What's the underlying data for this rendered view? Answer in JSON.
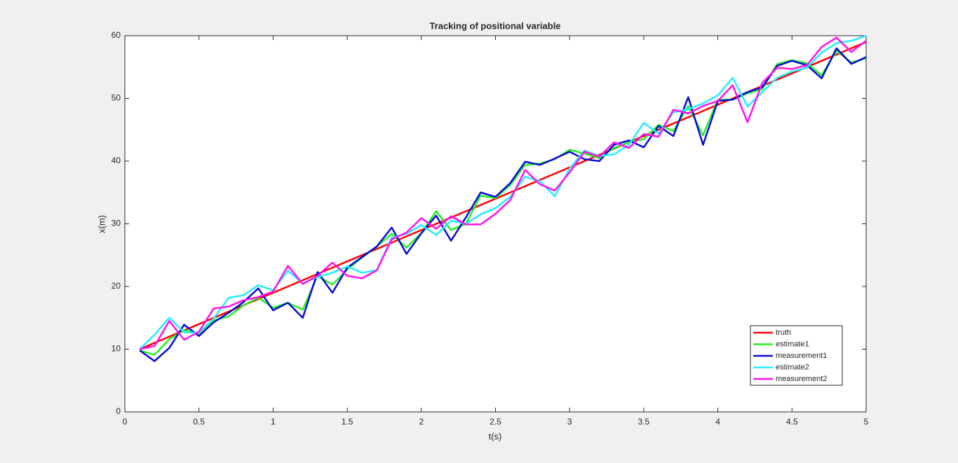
{
  "chart_data": {
    "type": "line",
    "title": "Tracking of positional variable",
    "xlabel": "t(s)",
    "ylabel": "x(m)",
    "x": [
      0.1,
      0.2,
      0.3,
      0.4,
      0.5,
      0.6,
      0.7,
      0.8,
      0.9,
      1.0,
      1.1,
      1.2,
      1.3,
      1.4,
      1.5,
      1.6,
      1.7,
      1.8,
      1.9,
      2.0,
      2.1,
      2.2,
      2.3,
      2.4,
      2.5,
      2.6,
      2.7,
      2.8,
      2.9,
      3.0,
      3.1,
      3.2,
      3.3,
      3.4,
      3.5,
      3.6,
      3.7,
      3.8,
      3.9,
      4.0,
      4.1,
      4.2,
      4.3,
      4.4,
      4.5,
      4.6,
      4.7,
      4.8,
      4.9,
      5.0
    ],
    "series": [
      {
        "name": "truth",
        "color": "#ff0000",
        "values": [
          10,
          11,
          12,
          13,
          14,
          15,
          16,
          17,
          18,
          19,
          20,
          21,
          22,
          23,
          24,
          25,
          26,
          27,
          28,
          29,
          30,
          31,
          32,
          33,
          34,
          35,
          36,
          37,
          38,
          39,
          40,
          41,
          42,
          43,
          44,
          45,
          46,
          47,
          48,
          49,
          50,
          51,
          52,
          53,
          54,
          55,
          56,
          57,
          58,
          59
        ]
      },
      {
        "name": "estimate1",
        "color": "#22ee22",
        "values": [
          9.8,
          9.1,
          11.6,
          13.0,
          12.5,
          14.6,
          15.2,
          17.0,
          18.2,
          16.6,
          17.4,
          16.3,
          21.7,
          20.3,
          22.7,
          24.6,
          26.4,
          28.4,
          26.2,
          28.5,
          32.0,
          29.0,
          30.0,
          34.5,
          34.1,
          36.2,
          39.4,
          39.6,
          40.3,
          41.8,
          41.2,
          40.5,
          42.1,
          43.0,
          43.5,
          45.8,
          44.8,
          48.8,
          44.1,
          49.8,
          49.8,
          50.8,
          51.5,
          55.5,
          56.1,
          55.6,
          53.7,
          57.6,
          55.7,
          56.4
        ]
      },
      {
        "name": "measurement1",
        "color": "#0a0ad8",
        "values": [
          9.8,
          8.1,
          10.2,
          13.9,
          12.1,
          14.3,
          15.8,
          17.5,
          19.7,
          16.2,
          17.4,
          15.0,
          22.3,
          19.0,
          23.0,
          24.7,
          26.4,
          29.4,
          25.2,
          28.5,
          31.3,
          27.3,
          31.0,
          35.0,
          34.3,
          36.5,
          39.9,
          39.4,
          40.4,
          41.5,
          40.3,
          40.0,
          42.6,
          43.3,
          42.2,
          45.6,
          44.0,
          50.2,
          42.6,
          49.6,
          49.8,
          51.0,
          51.8,
          55.2,
          56.0,
          55.3,
          53.2,
          58.0,
          55.5,
          56.6
        ]
      },
      {
        "name": "estimate2",
        "color": "#22eeff",
        "values": [
          10.0,
          12.3,
          15.0,
          12.7,
          12.6,
          14.9,
          18.2,
          18.6,
          20.2,
          19.4,
          22.5,
          20.5,
          21.5,
          22.2,
          23.2,
          22.2,
          22.6,
          27.8,
          28.4,
          29.8,
          28.2,
          30.5,
          30.0,
          31.5,
          32.5,
          34.3,
          37.5,
          36.8,
          34.4,
          38.8,
          41.7,
          40.8,
          41.1,
          42.6,
          46.1,
          44.4,
          47.8,
          48.3,
          49.2,
          50.5,
          53.3,
          48.7,
          51.0,
          53.3,
          54.3,
          54.9,
          57.3,
          58.8,
          59.2,
          60.0
        ]
      },
      {
        "name": "measurement2",
        "color": "#ff11ee",
        "values": [
          10.0,
          10.5,
          14.5,
          11.5,
          12.8,
          16.5,
          16.8,
          17.8,
          18.3,
          19.2,
          23.3,
          20.4,
          21.7,
          23.8,
          21.7,
          21.3,
          22.6,
          27.5,
          28.6,
          30.9,
          29.2,
          31.2,
          29.9,
          29.9,
          31.6,
          33.8,
          38.6,
          36.3,
          35.3,
          38.2,
          41.5,
          40.7,
          43.0,
          42.1,
          44.3,
          43.9,
          48.2,
          47.6,
          48.8,
          49.6,
          52.1,
          46.2,
          52.5,
          54.9,
          54.7,
          55.3,
          58.2,
          59.7,
          57.4,
          59.2
        ]
      }
    ],
    "xlim": [
      0,
      5
    ],
    "xticks": [
      0,
      0.5,
      1,
      1.5,
      2,
      2.5,
      3,
      3.5,
      4,
      4.5,
      5
    ],
    "ylim": [
      0,
      60
    ],
    "yticks": [
      0,
      10,
      20,
      30,
      40,
      50,
      60
    ],
    "legend": "lower right"
  }
}
